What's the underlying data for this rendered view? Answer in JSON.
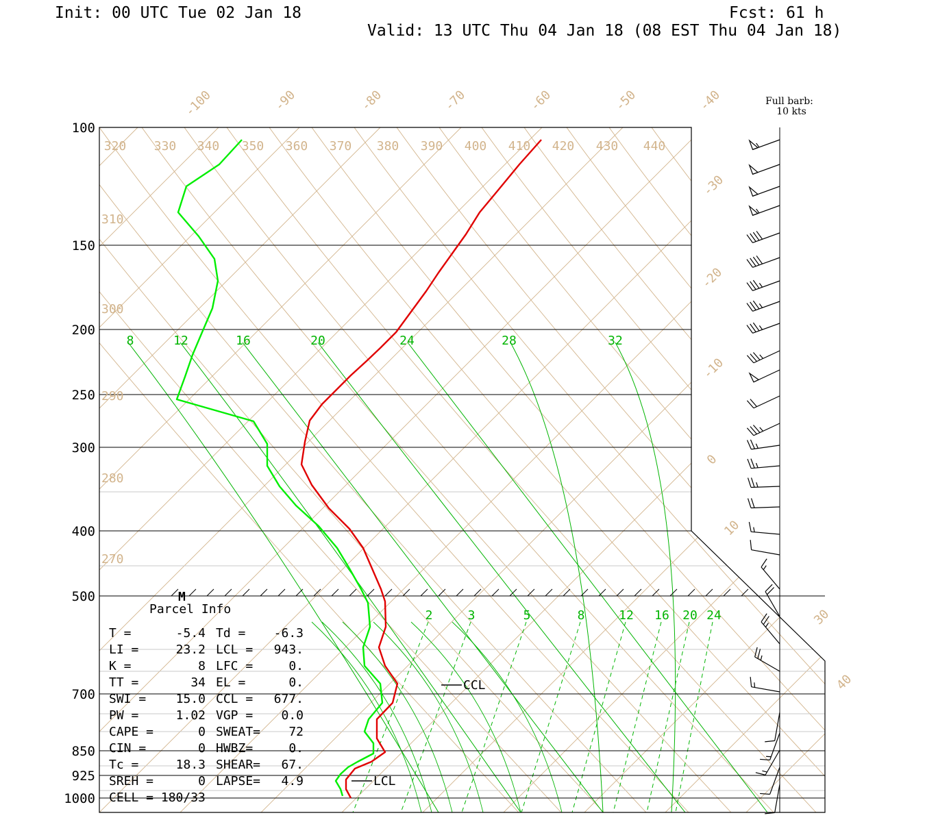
{
  "header": {
    "init": "Init: 00 UTC Tue 02 Jan 18",
    "fcst": "Fcst:   61 h",
    "valid": "Valid: 13 UTC Thu 04 Jan 18 (08 EST Thu 04 Jan 18)"
  },
  "barb_legend": {
    "line1": "Full barb:",
    "line2": "10 kts"
  },
  "chart_data": {
    "type": "line",
    "pressure_ticks": [
      "100",
      "150",
      "200",
      "250",
      "300",
      "400",
      "500",
      "700",
      "850",
      "925",
      "1000"
    ],
    "isotherm_labels": [
      "-100",
      "-90",
      "-80",
      "-70",
      "-60",
      "-50",
      "-40",
      "-30",
      "-20",
      "-10",
      "0",
      "10",
      "30",
      "40"
    ],
    "theta_labels_top": [
      "320",
      "330",
      "340",
      "350",
      "360",
      "370",
      "380",
      "390",
      "400",
      "410",
      "420",
      "430",
      "440"
    ],
    "theta_labels_left": [
      "310",
      "300",
      "290",
      "280",
      "270"
    ],
    "mixing_ratio_labels_upper": [
      "8",
      "12",
      "16",
      "20",
      "24",
      "28",
      "32"
    ],
    "mixing_ratio_labels_lower": [
      "2",
      "3",
      "5",
      "8",
      "12",
      "16",
      "20",
      "24"
    ],
    "series": [
      {
        "name": "Temperature",
        "color": "#e00000",
        "points": [
          [
            790,
            204
          ],
          [
            758,
            240
          ],
          [
            725,
            280
          ],
          [
            700,
            310
          ],
          [
            680,
            342
          ],
          [
            660,
            370
          ],
          [
            640,
            398
          ],
          [
            622,
            425
          ],
          [
            600,
            455
          ],
          [
            578,
            485
          ],
          [
            555,
            508
          ],
          [
            535,
            527
          ],
          [
            512,
            548
          ],
          [
            490,
            570
          ],
          [
            470,
            590
          ],
          [
            452,
            614
          ],
          [
            445,
            645
          ],
          [
            440,
            678
          ],
          [
            455,
            708
          ],
          [
            480,
            742
          ],
          [
            510,
            772
          ],
          [
            530,
            800
          ],
          [
            543,
            830
          ],
          [
            556,
            860
          ],
          [
            562,
            878
          ],
          [
            563,
            915
          ],
          [
            553,
            945
          ],
          [
            562,
            972
          ],
          [
            580,
            998
          ],
          [
            573,
            1026
          ],
          [
            550,
            1050
          ],
          [
            550,
            1078
          ],
          [
            562,
            1098
          ],
          [
            542,
            1112
          ],
          [
            518,
            1122
          ],
          [
            505,
            1138
          ],
          [
            505,
            1152
          ],
          [
            512,
            1165
          ]
        ]
      },
      {
        "name": "Dewpoint",
        "color": "#00ee00",
        "points": [
          [
            353,
            204
          ],
          [
            320,
            240
          ],
          [
            272,
            272
          ],
          [
            260,
            310
          ],
          [
            290,
            345
          ],
          [
            313,
            378
          ],
          [
            318,
            410
          ],
          [
            310,
            450
          ],
          [
            295,
            485
          ],
          [
            281,
            518
          ],
          [
            270,
            550
          ],
          [
            258,
            583
          ],
          [
            370,
            615
          ],
          [
            390,
            648
          ],
          [
            390,
            680
          ],
          [
            408,
            710
          ],
          [
            432,
            738
          ],
          [
            465,
            768
          ],
          [
            492,
            800
          ],
          [
            510,
            830
          ],
          [
            527,
            860
          ],
          [
            537,
            880
          ],
          [
            540,
            915
          ],
          [
            530,
            945
          ],
          [
            532,
            972
          ],
          [
            555,
            998
          ],
          [
            558,
            1026
          ],
          [
            538,
            1050
          ],
          [
            532,
            1068
          ],
          [
            545,
            1085
          ],
          [
            545,
            1100
          ],
          [
            522,
            1112
          ],
          [
            508,
            1120
          ],
          [
            497,
            1130
          ],
          [
            490,
            1140
          ],
          [
            497,
            1152
          ],
          [
            500,
            1162
          ]
        ]
      }
    ],
    "parcel_info": {
      "title": "Parcel Info",
      "rows": [
        [
          "T  =",
          "-5.4",
          "Td =",
          "-6.3"
        ],
        [
          "LI =",
          "23.2",
          "LCL =",
          "943."
        ],
        [
          "K  =",
          "8",
          "LFC =",
          "0."
        ],
        [
          "TT =",
          "34",
          "EL  =",
          "0."
        ],
        [
          "SWI =",
          "15.0",
          "CCL =",
          "677."
        ],
        [
          "PW =",
          "1.02",
          "VGP =",
          "0.0"
        ],
        [
          "CAPE =",
          "0",
          "SWEAT=",
          "72"
        ],
        [
          "CIN =",
          "0",
          "HWBZ=",
          "0."
        ],
        [
          "Tc =",
          "18.3",
          "SHEAR=",
          "67."
        ],
        [
          "SREH =",
          "0",
          "LAPSE=",
          "4.9"
        ],
        [
          "CELL = 180/33",
          "",
          "",
          ""
        ]
      ]
    },
    "annotations": {
      "ccl": "CCL",
      "lcl": "LCL",
      "melting": "M"
    },
    "wind_barbs_kts": [
      {
        "y": 204,
        "dir": 250,
        "spd": 55
      },
      {
        "y": 240,
        "dir": 250,
        "spd": 50
      },
      {
        "y": 272,
        "dir": 250,
        "spd": 50
      },
      {
        "y": 300,
        "dir": 250,
        "spd": 55
      },
      {
        "y": 340,
        "dir": 250,
        "spd": 40
      },
      {
        "y": 376,
        "dir": 250,
        "spd": 40
      },
      {
        "y": 410,
        "dir": 250,
        "spd": 35
      },
      {
        "y": 440,
        "dir": 250,
        "spd": 35
      },
      {
        "y": 472,
        "dir": 250,
        "spd": 35
      },
      {
        "y": 512,
        "dir": 245,
        "spd": 35
      },
      {
        "y": 540,
        "dir": 245,
        "spd": 50
      },
      {
        "y": 578,
        "dir": 245,
        "spd": 20
      },
      {
        "y": 618,
        "dir": 245,
        "spd": 35
      },
      {
        "y": 650,
        "dir": 262,
        "spd": 25
      },
      {
        "y": 680,
        "dir": 265,
        "spd": 25
      },
      {
        "y": 710,
        "dir": 268,
        "spd": 25
      },
      {
        "y": 740,
        "dir": 268,
        "spd": 20
      },
      {
        "y": 780,
        "dir": 275,
        "spd": 15
      },
      {
        "y": 810,
        "dir": 280,
        "spd": 10
      },
      {
        "y": 860,
        "dir": 320,
        "spd": 15
      },
      {
        "y": 900,
        "dir": 330,
        "spd": 20
      },
      {
        "y": 940,
        "dir": 320,
        "spd": 25
      },
      {
        "y": 980,
        "dir": 300,
        "spd": 25
      },
      {
        "y": 1010,
        "dir": 280,
        "spd": 15
      },
      {
        "y": 1040,
        "dir": 190,
        "spd": 10
      },
      {
        "y": 1070,
        "dir": 200,
        "spd": 15
      },
      {
        "y": 1095,
        "dir": 210,
        "spd": 15
      },
      {
        "y": 1120,
        "dir": 200,
        "spd": 10
      },
      {
        "y": 1145,
        "dir": 190,
        "spd": 10
      }
    ]
  }
}
